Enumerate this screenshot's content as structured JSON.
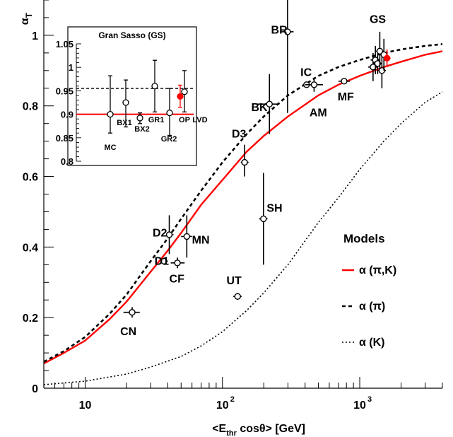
{
  "chart_data": {
    "type": "scatter",
    "ylabel_main": "α",
    "ylabel_sub": "T",
    "xlabel_pre": "<E",
    "xlabel_sub": "thr",
    "xlabel_post": " cosθ> [GeV]",
    "xscale": "log",
    "xlim": [
      5,
      4000
    ],
    "ylim": [
      0,
      1.1
    ],
    "x_ticks": [
      {
        "value": 10,
        "base": "10",
        "exp": ""
      },
      {
        "value": 100,
        "base": "10",
        "exp": "2"
      },
      {
        "value": 1000,
        "base": "10",
        "exp": "3"
      }
    ],
    "y_ticks": [
      {
        "value": 0,
        "label": "0"
      },
      {
        "value": 0.2,
        "label": "0.2"
      },
      {
        "value": 0.4,
        "label": "0.4"
      },
      {
        "value": 0.6,
        "label": "0.6"
      },
      {
        "value": 0.8,
        "label": "0.8"
      },
      {
        "value": 1.0,
        "label": "1"
      }
    ],
    "points": [
      {
        "label": "CN",
        "x": 22,
        "y": 0.215,
        "xerr": [
          19,
          25
        ],
        "yerr": [
          0.2,
          0.23
        ],
        "color": "#000000"
      },
      {
        "label": "D1",
        "x": 37.5,
        "y": 0.36,
        "xerr": [
          36,
          40
        ],
        "yerr": [
          0.35,
          0.37
        ],
        "color": "#000000"
      },
      {
        "label": "D2",
        "x": 41,
        "y": 0.435,
        "xerr": [
          39,
          44
        ],
        "yerr": [
          0.38,
          0.49
        ],
        "color": "#000000"
      },
      {
        "label": "CF",
        "x": 47,
        "y": 0.355,
        "xerr": [
          42,
          53
        ],
        "yerr": [
          0.34,
          0.37
        ],
        "color": "#000000"
      },
      {
        "label": "MN",
        "x": 55,
        "y": 0.43,
        "xerr": [
          50,
          60
        ],
        "yerr": [
          0.37,
          0.49
        ],
        "color": "#000000"
      },
      {
        "label": "UT",
        "x": 129,
        "y": 0.26,
        "xerr": [
          120,
          138
        ],
        "yerr": [
          0.25,
          0.27
        ],
        "color": "#000000"
      },
      {
        "label": "D3",
        "x": 145,
        "y": 0.64,
        "xerr": [
          136,
          155
        ],
        "yerr": [
          0.6,
          0.69
        ],
        "color": "#000000"
      },
      {
        "label": "SH",
        "x": 199,
        "y": 0.48,
        "xerr": [
          185,
          213
        ],
        "yerr": [
          0.35,
          0.61
        ],
        "color": "#000000"
      },
      {
        "label": "BK",
        "x": 220,
        "y": 0.805,
        "xerr": [
          180,
          260
        ],
        "yerr": [
          0.72,
          0.89
        ],
        "color": "#000000"
      },
      {
        "label": "BR",
        "x": 298,
        "y": 1.01,
        "xerr": [
          270,
          330
        ],
        "yerr": [
          0.78,
          1.1
        ],
        "color": "#000000"
      },
      {
        "label": "IC",
        "x": 410,
        "y": 0.86,
        "xerr": [
          385,
          440
        ],
        "yerr": [
          0.855,
          0.865
        ],
        "color": "#000000"
      },
      {
        "label": "AM",
        "x": 465,
        "y": 0.86,
        "xerr": [
          400,
          540
        ],
        "yerr": [
          0.84,
          0.88
        ],
        "color": "#000000"
      },
      {
        "label": "MF",
        "x": 770,
        "y": 0.87,
        "xerr": [
          700,
          850
        ],
        "yerr": [
          0.865,
          0.875
        ],
        "color": "#000000"
      },
      {
        "label": "GS-MC",
        "x": 1250,
        "y": 0.91,
        "xerr": [
          1150,
          1350
        ],
        "yerr": [
          0.87,
          0.95
        ],
        "color": "#000000"
      },
      {
        "label": "GS-BX1",
        "x": 1300,
        "y": 0.93,
        "xerr": [
          1200,
          1400
        ],
        "yerr": [
          0.89,
          0.97
        ],
        "color": "#000000"
      },
      {
        "label": "GS-BX2",
        "x": 1350,
        "y": 0.92,
        "xerr": [
          1250,
          1450
        ],
        "yerr": [
          0.89,
          0.95
        ],
        "color": "#000000"
      },
      {
        "label": "GS-GR1",
        "x": 1400,
        "y": 0.955,
        "xerr": [
          1300,
          1500
        ],
        "yerr": [
          0.9,
          1.01
        ],
        "color": "#000000"
      },
      {
        "label": "GS-GR2",
        "x": 1450,
        "y": 0.9,
        "xerr": [
          1350,
          1550
        ],
        "yerr": [
          0.85,
          0.95
        ],
        "color": "#000000"
      },
      {
        "label": "GS-OP",
        "x": 1500,
        "y": 0.945,
        "xerr": [
          1400,
          1600
        ],
        "yerr": [
          0.9,
          0.99
        ],
        "color": "#000000"
      },
      {
        "label": "GS-LVD",
        "x": 1580,
        "y": 0.935,
        "xerr": [
          1500,
          1680
        ],
        "yerr": [
          0.91,
          0.96
        ],
        "color": "#ff0000"
      }
    ],
    "labels": [
      {
        "text": "CN",
        "x": 18,
        "y": 0.15
      },
      {
        "text": "D1",
        "x": 32,
        "y": 0.35
      },
      {
        "text": "D2",
        "x": 31,
        "y": 0.43
      },
      {
        "text": "CF",
        "x": 41,
        "y": 0.3
      },
      {
        "text": "MN",
        "x": 60,
        "y": 0.41
      },
      {
        "text": "UT",
        "x": 107,
        "y": 0.295
      },
      {
        "text": "D3",
        "x": 117,
        "y": 0.71
      },
      {
        "text": "SH",
        "x": 210,
        "y": 0.5
      },
      {
        "text": "BK",
        "x": 162,
        "y": 0.785
      },
      {
        "text": "BR",
        "x": 226,
        "y": 1.005
      },
      {
        "text": "IC",
        "x": 370,
        "y": 0.885
      },
      {
        "text": "AM",
        "x": 430,
        "y": 0.77
      },
      {
        "text": "MF",
        "x": 690,
        "y": 0.815
      },
      {
        "text": "GS",
        "x": 1180,
        "y": 1.035
      }
    ],
    "series": [
      {
        "name": "α (π,K)",
        "style": "solid",
        "color": "#ff0000",
        "x": [
          5,
          7,
          10,
          15,
          20,
          30,
          40,
          50,
          70,
          100,
          150,
          200,
          300,
          500,
          700,
          1000,
          1500,
          2000,
          3000,
          4000
        ],
        "y": [
          0.07,
          0.1,
          0.135,
          0.195,
          0.245,
          0.33,
          0.39,
          0.44,
          0.52,
          0.59,
          0.67,
          0.715,
          0.77,
          0.83,
          0.86,
          0.885,
          0.91,
          0.925,
          0.945,
          0.955
        ]
      },
      {
        "name": "α (π)",
        "style": "dashed",
        "color": "#000000",
        "x": [
          5,
          7,
          10,
          15,
          20,
          30,
          40,
          50,
          70,
          100,
          150,
          200,
          300,
          500,
          700,
          1000,
          1500,
          2000,
          3000,
          4000
        ],
        "y": [
          0.075,
          0.105,
          0.145,
          0.21,
          0.265,
          0.36,
          0.425,
          0.48,
          0.56,
          0.64,
          0.72,
          0.77,
          0.83,
          0.885,
          0.91,
          0.93,
          0.95,
          0.96,
          0.97,
          0.975
        ]
      },
      {
        "name": "α (K)",
        "style": "dotted",
        "color": "#000000",
        "x": [
          5,
          10,
          20,
          30,
          50,
          70,
          100,
          150,
          200,
          300,
          500,
          700,
          1000,
          1500,
          2000,
          3000,
          4000
        ],
        "y": [
          0.01,
          0.02,
          0.04,
          0.06,
          0.09,
          0.12,
          0.16,
          0.22,
          0.27,
          0.35,
          0.47,
          0.54,
          0.62,
          0.7,
          0.75,
          0.81,
          0.84
        ]
      }
    ],
    "legend": {
      "title": "Models",
      "position": "bottom-right"
    },
    "inset": {
      "title": "Gran Sasso (GS)",
      "ylim": [
        0.8,
        1.05
      ],
      "y_ticks": [
        {
          "value": 0.8,
          "label": "0.8"
        },
        {
          "value": 0.85,
          "label": "0.85"
        },
        {
          "value": 0.9,
          "label": "0.9"
        },
        {
          "value": 0.95,
          "label": "0.95"
        },
        {
          "value": 1.0,
          "label": "1"
        },
        {
          "value": 1.05,
          "label": "1.05"
        }
      ],
      "ref_solid": 0.9,
      "ref_dashed": 0.955,
      "points": [
        {
          "label": "MC",
          "y": 0.9,
          "lo": 0.86,
          "hi": 0.982,
          "color": "#000000"
        },
        {
          "label": "BX1",
          "y": 0.925,
          "lo": 0.873,
          "hi": 0.973,
          "color": "#000000"
        },
        {
          "label": "BX2",
          "y": 0.892,
          "lo": 0.88,
          "hi": 0.903,
          "color": "#000000"
        },
        {
          "label": "GR1",
          "y": 0.96,
          "lo": 0.905,
          "hi": 1.015,
          "color": "#000000"
        },
        {
          "label": "GR2",
          "y": 0.903,
          "lo": 0.855,
          "hi": 0.955,
          "color": "#000000"
        },
        {
          "label": "OP",
          "y": 0.948,
          "lo": 0.905,
          "hi": 0.993,
          "color": "#000000"
        },
        {
          "label": "LVD",
          "y": 0.938,
          "lo": 0.915,
          "hi": 0.962,
          "color": "#ff0000"
        }
      ]
    }
  }
}
